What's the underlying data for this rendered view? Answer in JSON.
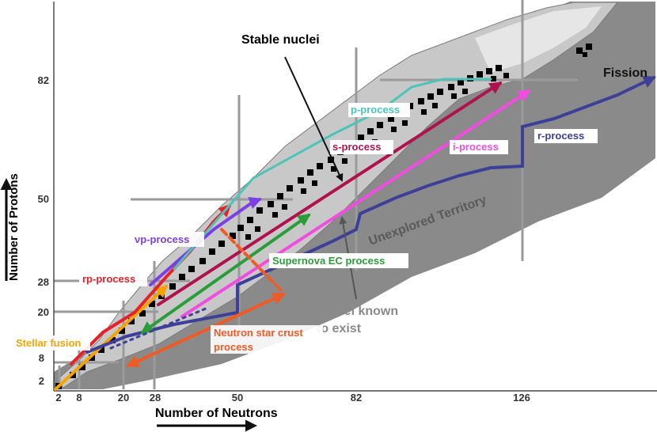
{
  "chart_data": {
    "type": "diagram",
    "xlabel": "Number of Neutrons",
    "ylabel": "Number of Protons",
    "x_ticks": [
      "2",
      "8",
      "20",
      "28",
      "50",
      "82",
      "126"
    ],
    "y_ticks": [
      "2",
      "8",
      "20",
      "28",
      "50",
      "82"
    ],
    "titles": {
      "stable": "Stable nuclei",
      "unexplored": "Unexplored Territory",
      "known": "Nuclei known to exist",
      "known_line1": "Nuclei known",
      "known_line2": "to exist"
    },
    "processes": [
      {
        "id": "stellar",
        "label": "Stellar fusion",
        "color": "#f5a300"
      },
      {
        "id": "rp",
        "label": "rp-process",
        "color": "#e8202a"
      },
      {
        "id": "vp",
        "label": "νp-process",
        "color": "#7b3fe4"
      },
      {
        "id": "p",
        "label": "p-process",
        "color": "#4cc4b8"
      },
      {
        "id": "s",
        "label": "s-process",
        "color": "#b0124e"
      },
      {
        "id": "i",
        "label": "i-process",
        "color": "#f04ce0"
      },
      {
        "id": "r",
        "label": "r-process",
        "color": "#3d3f98"
      },
      {
        "id": "sn",
        "label": "Supernova EC process",
        "color": "#2a9d3a"
      },
      {
        "id": "ns",
        "label": "Neutron star crust",
        "label2": "process",
        "color": "#f05a24"
      },
      {
        "id": "fission",
        "label": "Fission",
        "color": "#3d3f98"
      }
    ]
  }
}
